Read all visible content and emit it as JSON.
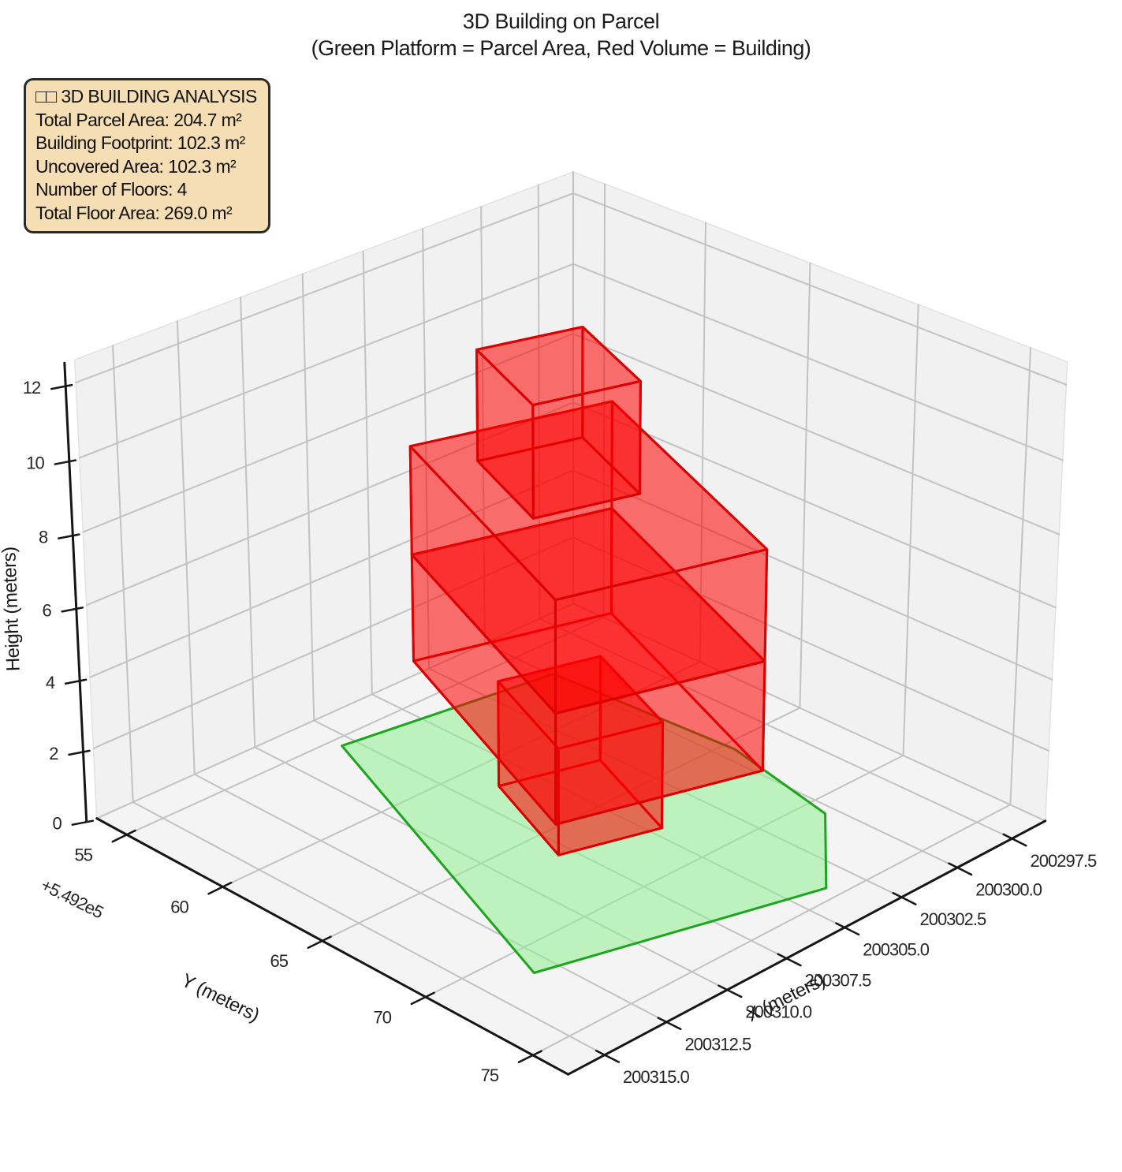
{
  "title": {
    "line1": "3D Building on Parcel",
    "line2": "(Green Platform = Parcel Area, Red Volume = Building)"
  },
  "info_box": {
    "header": "□□ 3D BUILDING ANALYSIS",
    "lines": [
      "Total Parcel Area:  204.7  m²",
      "Building Footprint:  102.3  m²",
      "Uncovered Area:  102.3  m²",
      "Number of Floors:  4",
      "Total Floor Area:  269.0  m²"
    ]
  },
  "colors": {
    "building_fill": "rgba(255,0,0,0.33)",
    "building_edge": "#dc0000",
    "parcel_fill": "rgba(144,238,144,0.55)",
    "parcel_edge": "#1ea51e",
    "wall_pane": "#f1f1f1",
    "floor_pane": "#f4f4f4",
    "grid": "#c2c2c2",
    "spine": "#161616",
    "text": "#262626"
  },
  "chart_data": {
    "type": "3d-building-extrusion",
    "stats": {
      "total_parcel_area_m2": 204.7,
      "building_footprint_m2": 102.3,
      "uncovered_area_m2": 102.3,
      "number_of_floors": 4,
      "total_floor_area_m2": 269.0
    },
    "axes": {
      "x": {
        "label": "X (meters)",
        "values": [
          200297.5,
          200300.0,
          200302.5,
          200305.0,
          200307.5,
          200310.0,
          200312.5,
          200315.0
        ],
        "labels": [
          "200297.5",
          "200300.0",
          "200302.5",
          "200305.0",
          "200307.5",
          "200310.0",
          "200312.5",
          "200315.0"
        ],
        "lim": [
          200295.95,
          200316.45
        ]
      },
      "y": {
        "label": "Y (meters)",
        "offset_text": "+5.492e5",
        "values": [
          549255,
          549260,
          549265,
          549270,
          549275
        ],
        "labels": [
          "55",
          "60",
          "65",
          "70",
          "75"
        ],
        "lim": [
          549253.4,
          549276.6
        ]
      },
      "z": {
        "label": "Height (meters)",
        "values": [
          0,
          2,
          4,
          6,
          8,
          10,
          12
        ],
        "labels": [
          "0",
          "2",
          "4",
          "6",
          "8",
          "10",
          "12"
        ],
        "lim": [
          0,
          12.6
        ]
      }
    },
    "parcel_polygon": [
      [
        200308.0,
        549255.5
      ],
      [
        200299.9,
        549256.9
      ],
      [
        200299.4,
        549265.5
      ],
      [
        200300.4,
        549270.9
      ],
      [
        200303.7,
        549274.4
      ],
      [
        200313.3,
        549271.4
      ]
    ],
    "building_floors": [
      {
        "name": "floor-1",
        "z": [
          0,
          3
        ],
        "footprint": [
          [
            200302.9,
            549262.7
          ],
          [
            200306.3,
            549261.53
          ],
          [
            200307.99,
            549266.45
          ],
          [
            200304.59,
            549267.62
          ]
        ]
      },
      {
        "name": "floor-2",
        "z": [
          3,
          6
        ],
        "footprint": [
          [
            200300.6,
            549260.64
          ],
          [
            200307.22,
            549258.36
          ],
          [
            200311.26,
            549270.08
          ],
          [
            200304.64,
            549272.36
          ]
        ]
      },
      {
        "name": "floor-3",
        "z": [
          6,
          9
        ],
        "footprint": [
          [
            200300.6,
            549260.64
          ],
          [
            200307.22,
            549258.36
          ],
          [
            200311.26,
            549270.08
          ],
          [
            200304.64,
            549272.36
          ]
        ]
      },
      {
        "name": "floor-4",
        "z": [
          9,
          12
        ],
        "footprint": [
          [
            200303.08,
            549262.0
          ],
          [
            200306.49,
            549260.83
          ],
          [
            200308.03,
            549265.32
          ],
          [
            200304.63,
            549266.49
          ]
        ]
      }
    ]
  }
}
